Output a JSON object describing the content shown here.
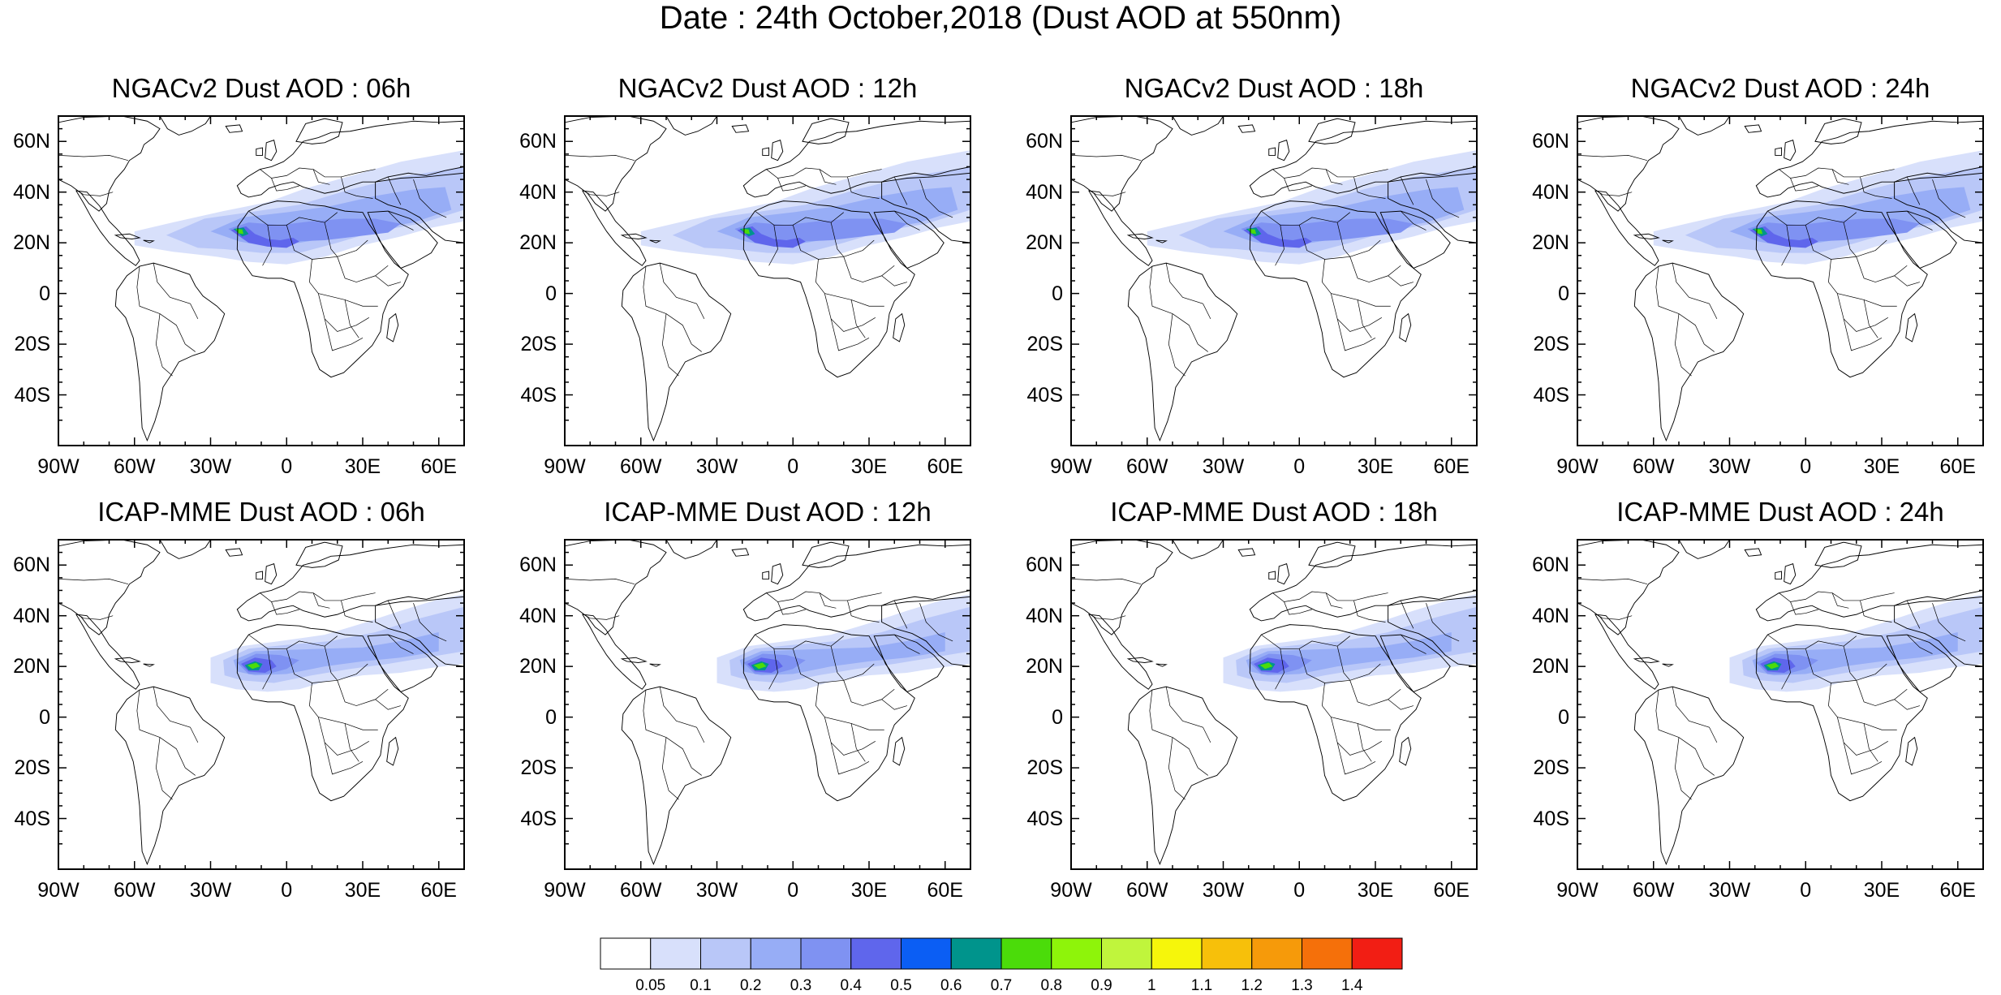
{
  "title": "Date : 24th October,2018 (Dust AOD at 550nm)",
  "lat_ticks": [
    "60N",
    "40N",
    "20N",
    "0",
    "20S",
    "40S"
  ],
  "lon_ticks": [
    "90W",
    "60W",
    "30W",
    "0",
    "30E",
    "60E"
  ],
  "colorbar": {
    "labels": [
      "0.05",
      "0.1",
      "0.2",
      "0.3",
      "0.4",
      "0.5",
      "0.6",
      "0.7",
      "0.8",
      "0.9",
      "1",
      "1.1",
      "1.2",
      "1.3",
      "1.4"
    ],
    "colors": [
      "#ffffff",
      "#d8e0fb",
      "#b9c7f8",
      "#97adf6",
      "#7f92f2",
      "#5f66ec",
      "#0b5ef4",
      "#00948c",
      "#4bdc0a",
      "#8ef40a",
      "#c0f53c",
      "#f6f60b",
      "#f7c00a",
      "#f69a0a",
      "#f5700a",
      "#f21e14"
    ]
  },
  "panels": [
    {
      "title": "NGACv2 Dust AOD : 06h"
    },
    {
      "title": "NGACv2 Dust AOD : 12h"
    },
    {
      "title": "NGACv2 Dust AOD : 18h"
    },
    {
      "title": "NGACv2 Dust AOD : 24h"
    },
    {
      "title": "ICAP-MME Dust AOD : 06h"
    },
    {
      "title": "ICAP-MME Dust AOD : 12h"
    },
    {
      "title": "ICAP-MME Dust AOD : 18h"
    },
    {
      "title": "ICAP-MME Dust AOD : 24h"
    }
  ]
}
